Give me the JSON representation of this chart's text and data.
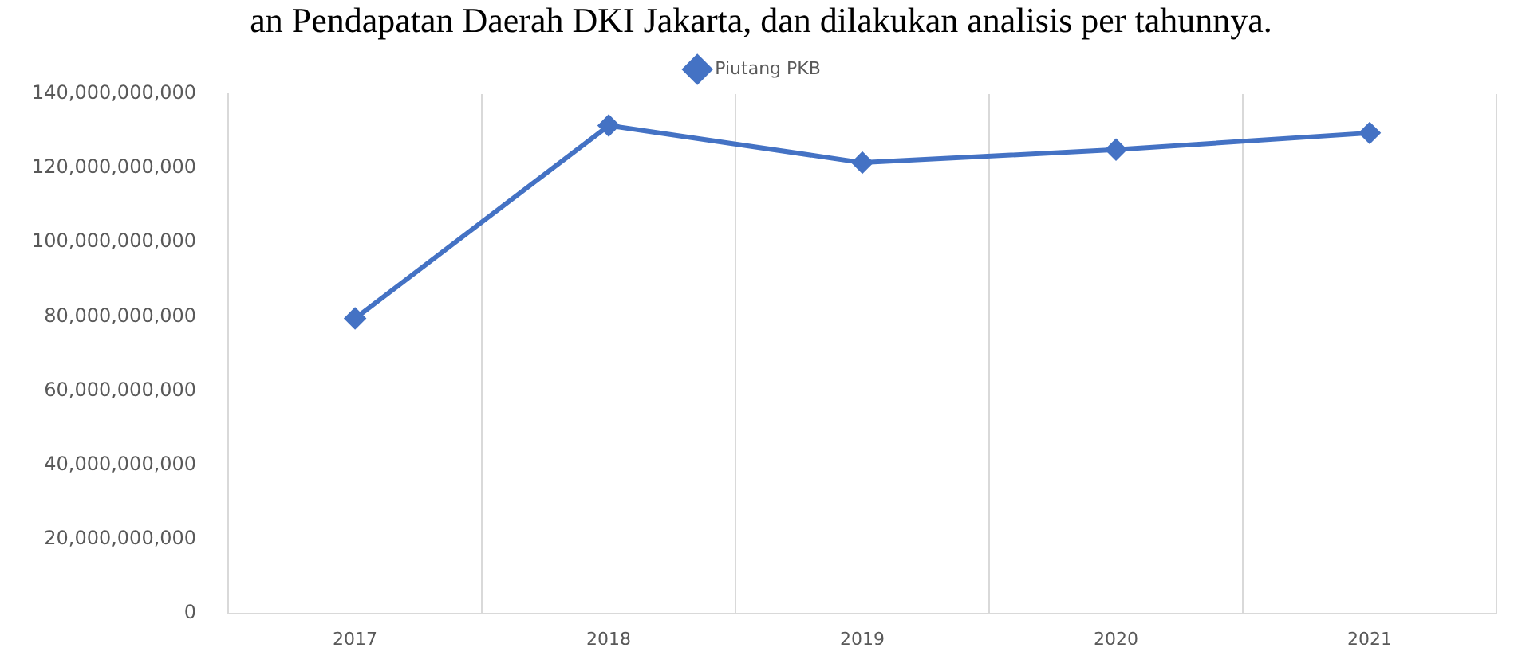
{
  "chart_data": {
    "type": "line",
    "annotations": [
      "an Pendapatan Daerah DKI Jakarta, dan dilakukan analisis per tahunnya."
    ],
    "categories": [
      "2017",
      "2018",
      "2019",
      "2020",
      "2021"
    ],
    "series": [
      {
        "name": "Piutang PKB",
        "color": "#4472c4",
        "values": [
          79500000000,
          131500000000,
          121500000000,
          125000000000,
          129500000000
        ]
      }
    ],
    "ylim": [
      0,
      140000000000
    ],
    "yticks": [
      0,
      {
        "value": 20000000000,
        "label": "20,000,000,000"
      },
      {
        "value": 40000000000,
        "label": "40,000,000,000"
      },
      {
        "value": 60000000000,
        "label": "60,000,000,000"
      },
      {
        "value": 80000000000,
        "label": "80,000,000,000"
      },
      {
        "value": 100000000000,
        "label": "100,000,000,000"
      },
      {
        "value": 120000000000,
        "label": "120,000,000,000"
      },
      {
        "value": 140000000000,
        "label": "140,000,000,000"
      }
    ],
    "grid": "x",
    "legend": "top",
    "marker": "diamond",
    "line_style": "solid"
  }
}
